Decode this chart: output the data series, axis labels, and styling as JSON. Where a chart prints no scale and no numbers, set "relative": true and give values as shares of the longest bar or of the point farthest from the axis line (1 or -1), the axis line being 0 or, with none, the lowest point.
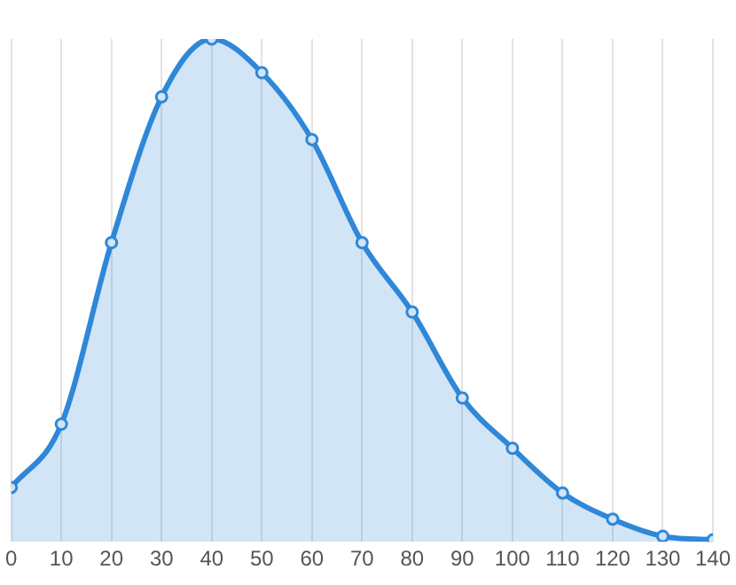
{
  "chart_data": {
    "type": "area",
    "relative": true,
    "x": [
      0,
      10,
      20,
      30,
      40,
      50,
      60,
      70,
      80,
      90,
      100,
      110,
      120,
      130,
      140
    ],
    "series": [
      {
        "color": "#2f87d8",
        "values": [
          0.108,
          0.234,
          0.595,
          0.885,
          1,
          0.933,
          0.8,
          0.595,
          0.457,
          0.286,
          0.186,
          0.097,
          0.045,
          0.011,
          0.004
        ]
      }
    ],
    "xlim": [
      0,
      140
    ],
    "xticks": [
      0,
      10,
      20,
      30,
      40,
      50,
      60,
      70,
      80,
      90,
      100,
      110,
      120,
      130,
      140
    ],
    "grid": "x",
    "marker": "circle",
    "legend": false
  }
}
